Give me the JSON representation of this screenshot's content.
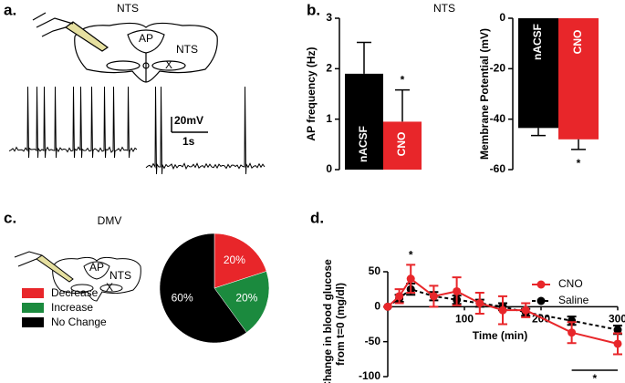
{
  "panels": {
    "a": {
      "label": "a.",
      "title": "NTS",
      "diagram_labels": [
        "AP",
        "NTS",
        "X"
      ],
      "scale_v": "20mV",
      "scale_t": "1s"
    },
    "b": {
      "label": "b.",
      "title": "NTS"
    },
    "c": {
      "label": "c.",
      "title": "DMV",
      "diagram_labels": [
        "AP",
        "NTS",
        "X"
      ]
    },
    "d": {
      "label": "d."
    }
  },
  "chart_data": [
    {
      "type": "bar",
      "ylabel": "AP frequency (Hz)",
      "categories": [
        "nACSF",
        "CNO"
      ],
      "values": [
        1.9,
        0.95
      ],
      "errors": [
        0.62,
        0.63
      ],
      "colors": [
        "#000000",
        "#e8262a"
      ],
      "ylim": [
        0,
        3
      ],
      "yticks": [
        0,
        1,
        2,
        3
      ],
      "annotation": "*"
    },
    {
      "type": "bar",
      "ylabel": "Membrane Potential (mV)",
      "categories": [
        "nACSF",
        "CNO"
      ],
      "values": [
        -43.5,
        -48
      ],
      "errors": [
        3,
        4
      ],
      "colors": [
        "#000000",
        "#e8262a"
      ],
      "ylim": [
        -60,
        0
      ],
      "yticks": [
        -60,
        -40,
        -20,
        0
      ],
      "annotation": "*"
    },
    {
      "type": "pie",
      "categories": [
        "Decrease",
        "Increase",
        "No Change"
      ],
      "values": [
        20,
        20,
        60
      ],
      "value_labels": [
        "20%",
        "20%",
        "60%"
      ],
      "colors": [
        "#e8262a",
        "#1b8a3e",
        "#000000"
      ]
    },
    {
      "type": "line",
      "ylabel": [
        "Change in blood glucose",
        "from t=0 (mg/dl)"
      ],
      "xlabel": "Time (min)",
      "x": [
        0,
        15,
        30,
        60,
        90,
        120,
        150,
        180,
        240,
        300
      ],
      "series": [
        {
          "name": "CNO",
          "color": "#e8262a",
          "linestyle": "solid",
          "values": [
            0,
            15,
            40,
            15,
            22,
            5,
            -5,
            -5,
            -37,
            -53
          ],
          "errors": [
            0,
            10,
            20,
            15,
            20,
            15,
            20,
            10,
            15,
            15
          ]
        },
        {
          "name": "Saline",
          "color": "#000000",
          "linestyle": "dashed",
          "values": [
            0,
            12,
            25,
            15,
            10,
            5,
            0,
            -8,
            -20,
            -33
          ],
          "errors": [
            0,
            5,
            8,
            6,
            6,
            5,
            5,
            5,
            6,
            6
          ]
        }
      ],
      "xlim": [
        0,
        300
      ],
      "xticks": [
        100,
        200,
        300
      ],
      "ylim": [
        -100,
        50
      ],
      "yticks": [
        -100,
        -50,
        0,
        50
      ],
      "annotations": [
        "*",
        "*"
      ]
    }
  ]
}
